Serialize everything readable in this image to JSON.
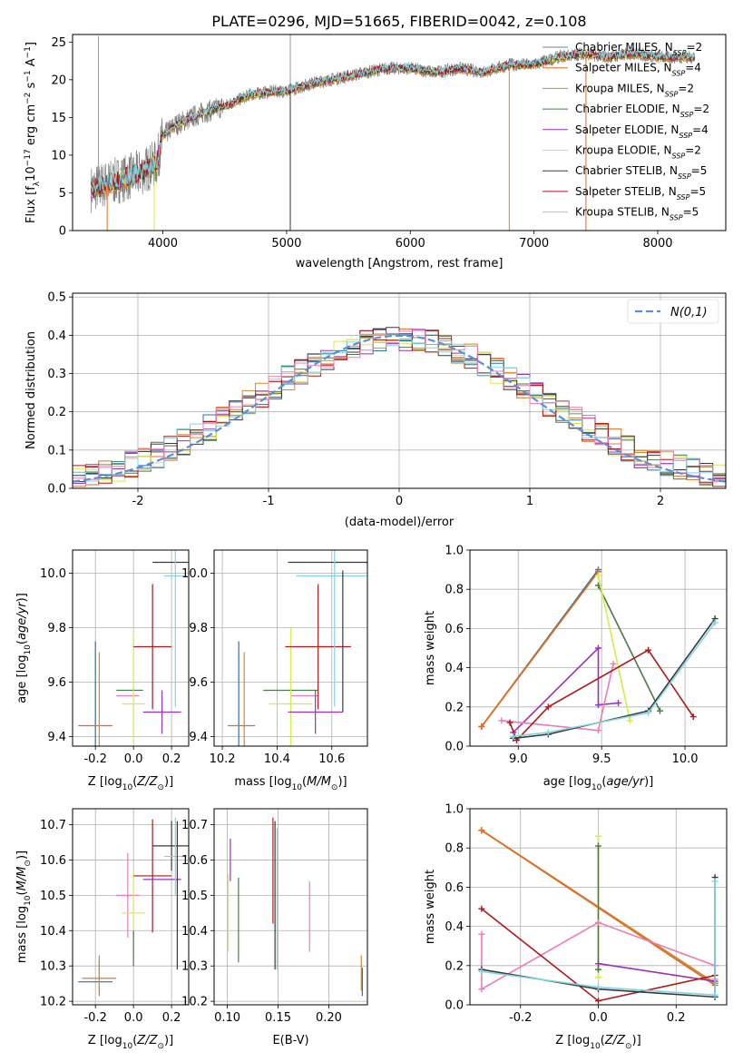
{
  "figure_title": "PLATE=0296, MJD=51665, FIBERID=0042, z=0.108",
  "colors": {
    "Chabrier MILES": "#1f77b4",
    "Salpeter MILES": "#e66a1e",
    "Kroupa MILES": "#d08a30",
    "Chabrier ELODIE": "#4a7a4a",
    "Salpeter ELODIE": "#9b30b8",
    "Kroupa ELODIE": "#d4ec4a",
    "Chabrier STELIB": "#3a3a3a",
    "Salpeter STELIB": "#b01818",
    "Kroupa STELIB": "#82d4e0",
    "pink": "#ec7cb8",
    "data": "#7f7f7f",
    "normal": "#5b8fd6"
  },
  "chart_data": [
    {
      "id": "spectrum",
      "type": "line",
      "title": "PLATE=0296, MJD=51665, FIBERID=0042, z=0.108",
      "xlabel": "wavelength [Angstrom, rest frame]",
      "ylabel": "Flux [f_λ10^-17 erg cm^-2 s^-1 A^-1]",
      "xlim": [
        3270,
        8550
      ],
      "ylim": [
        0,
        26
      ],
      "xticks": [
        4000,
        5000,
        6000,
        7000,
        8000
      ],
      "yticks": [
        0,
        5,
        10,
        15,
        20,
        25
      ],
      "grid": false,
      "legend_position": "top-right",
      "legend": [
        {
          "name": "Chabrier MILES, N_SSP=2",
          "color_key": "data"
        },
        {
          "name": "Salpeter MILES, N_SSP=4",
          "color_key": "Salpeter MILES"
        },
        {
          "name": "Kroupa MILES, N_SSP=2",
          "color_key": "Kroupa MILES"
        },
        {
          "name": "Chabrier ELODIE, N_SSP=2",
          "color_key": "Chabrier ELODIE"
        },
        {
          "name": "Salpeter ELODIE, N_SSP=4",
          "color_key": "Salpeter ELODIE"
        },
        {
          "name": "Kroupa ELODIE, N_SSP=2",
          "color_key": "Kroupa ELODIE"
        },
        {
          "name": "Chabrier STELIB, N_SSP=5",
          "color_key": "Chabrier STELIB"
        },
        {
          "name": "Salpeter STELIB, N_SSP=5",
          "color_key": "Salpeter STELIB"
        },
        {
          "name": "Kroupa STELIB, N_SSP=5",
          "color_key": "Kroupa STELIB"
        }
      ],
      "continuum": [
        [
          3420,
          5.5
        ],
        [
          3600,
          6.5
        ],
        [
          3800,
          7.5
        ],
        [
          3950,
          9
        ],
        [
          4000,
          12.5
        ],
        [
          4100,
          14
        ],
        [
          4300,
          15.5
        ],
        [
          4500,
          16.5
        ],
        [
          4700,
          18
        ],
        [
          4900,
          18.5
        ],
        [
          5000,
          18.5
        ],
        [
          5200,
          19.5
        ],
        [
          5500,
          20.5
        ],
        [
          5800,
          21.5
        ],
        [
          6000,
          21.5
        ],
        [
          6200,
          21
        ],
        [
          6400,
          21.5
        ],
        [
          6600,
          21
        ],
        [
          6800,
          22
        ],
        [
          7000,
          22
        ],
        [
          7200,
          23
        ],
        [
          7400,
          23.5
        ],
        [
          7600,
          23
        ],
        [
          7800,
          23.5
        ],
        [
          8000,
          23
        ],
        [
          8300,
          23
        ]
      ],
      "dips": [
        [
          3550,
          0
        ],
        [
          3930,
          0
        ],
        [
          5030,
          0
        ],
        [
          6800,
          0
        ],
        [
          7420,
          0
        ]
      ],
      "spikes": [
        [
          5030,
          26
        ],
        [
          3480,
          25.8
        ]
      ]
    },
    {
      "id": "residuals",
      "type": "histogram",
      "xlabel": "(data-model)/error",
      "ylabel": "Normed distribution",
      "xlim": [
        -2.5,
        2.5
      ],
      "ylim": [
        0,
        0.51
      ],
      "xticks": [
        -2,
        -1,
        0,
        1,
        2
      ],
      "yticks": [
        0.0,
        0.1,
        0.2,
        0.3,
        0.4,
        0.5
      ],
      "grid": true,
      "legend_position": "top-right",
      "bins": {
        "start": -2.5,
        "width": 0.1,
        "count": 50
      },
      "normal_curve_label": "N(0,1)",
      "series_colors": [
        "Chabrier MILES",
        "Salpeter MILES",
        "Kroupa MILES",
        "Chabrier ELODIE",
        "Salpeter ELODIE",
        "Kroupa ELODIE",
        "Chabrier STELIB",
        "Salpeter STELIB",
        "Kroupa STELIB",
        "pink"
      ]
    },
    {
      "id": "age_vs_Z",
      "type": "errorbar",
      "xlabel": "Z [log10(Z/Z⊙)]",
      "ylabel": "age [log10(age/yr)]",
      "xlim": [
        -0.32,
        0.29
      ],
      "ylim": [
        9.365,
        10.085
      ],
      "xticks": [
        -0.2,
        0.0,
        0.2
      ],
      "yticks": [
        9.4,
        9.6,
        9.8,
        10.0
      ],
      "grid": true,
      "points": [
        {
          "c": "Chabrier MILES",
          "x": -0.2,
          "y": 9.44,
          "xerr": 0.0,
          "yerr": 0.31
        },
        {
          "c": "Salpeter MILES",
          "x": -0.2,
          "y": 9.44,
          "xerr": 0.09,
          "yerr": 0.0
        },
        {
          "c": "Kroupa MILES",
          "x": -0.18,
          "y": 9.44,
          "xerr": 0.0,
          "yerr": 0.27
        },
        {
          "c": "Chabrier ELODIE",
          "x": -0.02,
          "y": 9.57,
          "xerr": 0.07,
          "yerr": 0.0
        },
        {
          "c": "pink",
          "x": -0.03,
          "y": 9.55,
          "xerr": 0.06,
          "yerr": 0.0
        },
        {
          "c": "Kroupa ELODIE",
          "x": 0.0,
          "y": 9.52,
          "xerr": 0.06,
          "yerr": 0.28
        },
        {
          "c": "Salpeter STELIB",
          "x": 0.1,
          "y": 9.73,
          "xerr": 0.1,
          "yerr": 0.23
        },
        {
          "c": "Salpeter ELODIE",
          "x": 0.15,
          "y": 9.49,
          "xerr": 0.1,
          "yerr": 0.08
        },
        {
          "c": "Chabrier STELIB",
          "x": 0.2,
          "y": 10.04,
          "xerr": 0.1,
          "yerr": 0.0
        },
        {
          "c": "Kroupa STELIB",
          "x": 0.22,
          "y": 9.99,
          "xerr": 0.06,
          "yerr": 0.48
        }
      ]
    },
    {
      "id": "age_vs_mass",
      "type": "errorbar",
      "xlabel": "mass [log10(M/M⊙)]",
      "ylabel": "",
      "xlim": [
        10.17,
        10.73
      ],
      "ylim": [
        9.365,
        10.085
      ],
      "xticks": [
        10.2,
        10.4,
        10.6
      ],
      "yticks": [
        9.4,
        9.6,
        9.8,
        10.0
      ],
      "grid": true,
      "points": [
        {
          "c": "Chabrier MILES",
          "x": 10.26,
          "y": 9.44,
          "xerr": 0.0,
          "yerr": 0.31
        },
        {
          "c": "Salpeter MILES",
          "x": 10.27,
          "y": 9.44,
          "xerr": 0.05,
          "yerr": 0.0
        },
        {
          "c": "Kroupa MILES",
          "x": 10.28,
          "y": 9.44,
          "xerr": 0.0,
          "yerr": 0.27
        },
        {
          "c": "Chabrier ELODIE",
          "x": 10.45,
          "y": 9.57,
          "xerr": 0.1,
          "yerr": 0.0
        },
        {
          "c": "pink",
          "x": 10.5,
          "y": 9.55,
          "xerr": 0.05,
          "yerr": 0.0
        },
        {
          "c": "Kroupa ELODIE",
          "x": 10.45,
          "y": 9.52,
          "xerr": 0.08,
          "yerr": 0.28
        },
        {
          "c": "Salpeter STELIB",
          "x": 10.55,
          "y": 9.73,
          "xerr": 0.12,
          "yerr": 0.23
        },
        {
          "c": "Salpeter ELODIE",
          "x": 10.54,
          "y": 9.49,
          "xerr": 0.1,
          "yerr": 0.08
        },
        {
          "c": "Chabrier STELIB",
          "x": 10.64,
          "y": 10.04,
          "xerr": 0.2,
          "yerr": 0.0
        },
        {
          "c": "Kroupa STELIB",
          "x": 10.61,
          "y": 9.99,
          "xerr": 0.14,
          "yerr": 0.48
        },
        {
          "c": "Chabrier STELIB",
          "x": 10.64,
          "y": 9.75,
          "xerr": 0.0,
          "yerr": 0.26
        }
      ]
    },
    {
      "id": "mass_weight_vs_age",
      "type": "line",
      "xlabel": "age [log10(age/yr)]",
      "ylabel": "mass weight",
      "xlim": [
        8.71,
        10.25
      ],
      "ylim": [
        0,
        1
      ],
      "xticks": [
        9.0,
        9.5,
        10.0
      ],
      "yticks": [
        0.0,
        0.2,
        0.4,
        0.6,
        0.8,
        1.0
      ],
      "grid": true,
      "series": [
        {
          "c": "Chabrier MILES",
          "pts": [
            [
              8.78,
              0.1
            ],
            [
              9.48,
              0.9
            ]
          ]
        },
        {
          "c": "Kroupa MILES",
          "pts": [
            [
              8.78,
              0.1
            ],
            [
              9.48,
              0.89
            ]
          ]
        },
        {
          "c": "Salpeter MILES",
          "pts": [
            [
              8.78,
              0.1
            ],
            [
              9.48,
              0.89
            ]
          ]
        },
        {
          "c": "Chabrier ELODIE",
          "pts": [
            [
              9.48,
              0.82
            ],
            [
              9.85,
              0.18
            ]
          ]
        },
        {
          "c": "Kroupa ELODIE",
          "pts": [
            [
              9.48,
              0.87
            ],
            [
              9.67,
              0.13
            ]
          ]
        },
        {
          "c": "Salpeter ELODIE",
          "pts": [
            [
              8.97,
              0.07
            ],
            [
              9.48,
              0.5
            ],
            [
              9.48,
              0.21
            ],
            [
              9.6,
              0.22
            ]
          ]
        },
        {
          "c": "pink",
          "pts": [
            [
              8.9,
              0.13
            ],
            [
              9.48,
              0.08
            ],
            [
              9.57,
              0.42
            ]
          ]
        },
        {
          "c": "Salpeter STELIB",
          "pts": [
            [
              8.95,
              0.12
            ],
            [
              8.99,
              0.03
            ],
            [
              9.18,
              0.2
            ],
            [
              9.78,
              0.49
            ],
            [
              10.05,
              0.15
            ]
          ]
        },
        {
          "c": "Chabrier STELIB",
          "pts": [
            [
              8.97,
              0.04
            ],
            [
              9.18,
              0.06
            ],
            [
              9.78,
              0.18
            ],
            [
              10.18,
              0.65
            ]
          ]
        },
        {
          "c": "Kroupa STELIB",
          "pts": [
            [
              8.97,
              0.05
            ],
            [
              9.18,
              0.07
            ],
            [
              9.78,
              0.17
            ],
            [
              10.18,
              0.63
            ]
          ]
        }
      ]
    },
    {
      "id": "mass_vs_Z",
      "type": "errorbar",
      "xlabel": "Z [log10(Z/Z⊙)]",
      "ylabel": "mass [log10(M/M⊙)]",
      "xlim": [
        -0.32,
        0.29
      ],
      "ylim": [
        10.19,
        10.745
      ],
      "xticks": [
        -0.2,
        0.0,
        0.2
      ],
      "yticks": [
        10.2,
        10.3,
        10.4,
        10.5,
        10.6,
        10.7
      ],
      "grid": true,
      "points": [
        {
          "c": "Chabrier MILES",
          "x": -0.2,
          "y": 10.255,
          "xerr": 0.09,
          "yerr": 0.0
        },
        {
          "c": "Salpeter MILES",
          "x": -0.18,
          "y": 10.265,
          "xerr": 0.09,
          "yerr": 0.05
        },
        {
          "c": "Kroupa MILES",
          "x": -0.18,
          "y": 10.28,
          "xerr": 0.0,
          "yerr": 0.05
        },
        {
          "c": "pink",
          "x": -0.03,
          "y": 10.5,
          "xerr": 0.06,
          "yerr": 0.12
        },
        {
          "c": "Kroupa ELODIE",
          "x": 0.0,
          "y": 10.45,
          "xerr": 0.06,
          "yerr": 0.12
        },
        {
          "c": "Chabrier ELODIE",
          "x": 0.0,
          "y": 10.35,
          "xerr": 0.0,
          "yerr": 0.05
        },
        {
          "c": "Salpeter STELIB",
          "x": 0.1,
          "y": 10.555,
          "xerr": 0.1,
          "yerr": 0.16
        },
        {
          "c": "Salpeter ELODIE",
          "x": 0.15,
          "y": 10.545,
          "xerr": 0.1,
          "yerr": 0.0
        },
        {
          "c": "Chabrier STELIB",
          "x": 0.2,
          "y": 10.64,
          "xerr": 0.1,
          "yerr": 0.07
        },
        {
          "c": "Kroupa STELIB",
          "x": 0.22,
          "y": 10.61,
          "xerr": 0.06,
          "yerr": 0.11
        },
        {
          "c": "Chabrier STELIB",
          "x": 0.23,
          "y": 10.5,
          "xerr": 0.0,
          "yerr": 0.21
        }
      ]
    },
    {
      "id": "mass_vs_EBV",
      "type": "errorbar",
      "xlabel": "E(B-V)",
      "ylabel": "",
      "xlim": [
        0.087,
        0.238
      ],
      "ylim": [
        10.19,
        10.745
      ],
      "xticks": [
        0.1,
        0.15,
        0.2
      ],
      "yticks": [
        10.2,
        10.3,
        10.4,
        10.5,
        10.6,
        10.7
      ],
      "grid": true,
      "points": [
        {
          "c": "Kroupa ELODIE",
          "x": 0.101,
          "y": 10.45,
          "xerr": 0.0,
          "yerr": 0.11
        },
        {
          "c": "Salpeter ELODIE",
          "x": 0.103,
          "y": 10.6,
          "xerr": 0.0,
          "yerr": 0.06
        },
        {
          "c": "Chabrier ELODIE",
          "x": 0.111,
          "y": 10.43,
          "xerr": 0.0,
          "yerr": 0.12
        },
        {
          "c": "Salpeter STELIB",
          "x": 0.145,
          "y": 10.57,
          "xerr": 0.0,
          "yerr": 0.15
        },
        {
          "c": "Chabrier STELIB",
          "x": 0.147,
          "y": 10.5,
          "xerr": 0.0,
          "yerr": 0.21
        },
        {
          "c": "Kroupa STELIB",
          "x": 0.149,
          "y": 10.49,
          "xerr": 0.0,
          "yerr": 0.2
        },
        {
          "c": "pink",
          "x": 0.181,
          "y": 10.44,
          "xerr": 0.0,
          "yerr": 0.1
        },
        {
          "c": "Kroupa MILES",
          "x": 0.232,
          "y": 10.28,
          "xerr": 0.0,
          "yerr": 0.05
        },
        {
          "c": "Chabrier MILES",
          "x": 0.233,
          "y": 10.255,
          "xerr": 0.0,
          "yerr": 0.04
        }
      ]
    },
    {
      "id": "mass_weight_vs_Z",
      "type": "line",
      "xlabel": "Z [log10(Z/Z⊙)]",
      "ylabel": "mass weight",
      "xlim": [
        -0.33,
        0.33
      ],
      "ylim": [
        0,
        1
      ],
      "xticks": [
        -0.2,
        0.0,
        0.2
      ],
      "yticks": [
        0.0,
        0.2,
        0.4,
        0.6,
        0.8,
        1.0
      ],
      "grid": true,
      "series": [
        {
          "c": "Chabrier MILES",
          "pts": [
            [
              -0.3,
              0.89
            ],
            [
              0.3,
              0.11
            ]
          ]
        },
        {
          "c": "Kroupa MILES",
          "pts": [
            [
              -0.3,
              0.89
            ],
            [
              0.3,
              0.11
            ]
          ]
        },
        {
          "c": "Salpeter MILES",
          "pts": [
            [
              -0.3,
              0.89
            ],
            [
              0.3,
              0.1
            ]
          ]
        },
        {
          "c": "Kroupa ELODIE",
          "pts": [
            [
              0.0,
              0.86
            ],
            [
              0.0,
              0.14
            ]
          ]
        },
        {
          "c": "Chabrier ELODIE",
          "pts": [
            [
              0.0,
              0.81
            ],
            [
              0.0,
              0.18
            ]
          ]
        },
        {
          "c": "pink",
          "pts": [
            [
              -0.3,
              0.36
            ],
            [
              -0.3,
              0.08
            ],
            [
              0.0,
              0.42
            ],
            [
              0.3,
              0.2
            ],
            [
              0.3,
              0.13
            ]
          ]
        },
        {
          "c": "Salpeter ELODIE",
          "pts": [
            [
              0.0,
              0.21
            ],
            [
              0.3,
              0.12
            ]
          ]
        },
        {
          "c": "Salpeter STELIB",
          "pts": [
            [
              -0.3,
              0.49
            ],
            [
              0.0,
              0.02
            ],
            [
              0.3,
              0.15
            ]
          ]
        },
        {
          "c": "Chabrier STELIB",
          "pts": [
            [
              -0.3,
              0.18
            ],
            [
              0.0,
              0.08
            ],
            [
              0.3,
              0.04
            ],
            [
              0.3,
              0.65
            ]
          ]
        },
        {
          "c": "Kroupa STELIB",
          "pts": [
            [
              -0.3,
              0.17
            ],
            [
              0.0,
              0.09
            ],
            [
              0.3,
              0.05
            ],
            [
              0.3,
              0.63
            ]
          ]
        }
      ]
    }
  ]
}
